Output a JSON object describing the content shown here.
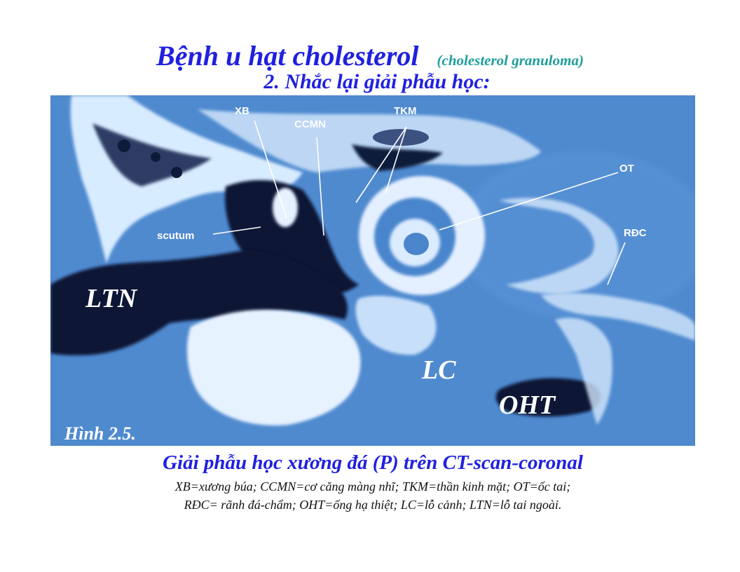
{
  "slide": {
    "title": "Bệnh u hạt cholesterol",
    "title_note": "(cholesterol granuloma)",
    "subtitle": "2. Nhắc lại giải phẫu học:",
    "colors": {
      "title": "#2020e0",
      "title_note": "#1e9e9e",
      "scan_bg": "#4a85cc"
    }
  },
  "figure": {
    "labels": {
      "xb": "XB",
      "ccmn": "CCMN",
      "tkm": "TKM",
      "ot": "OT",
      "rdc": "RĐC",
      "scutum": "scutum",
      "ltn": "LTN",
      "lc": "LC",
      "oht": "OHT"
    },
    "figure_number": "Hình 2.5.",
    "caption_title": "Giải phẫu học xương đá (P) trên CT-scan-coronal",
    "legend_line1": "XB=xương búa;  CCMN=cơ căng màng nhĩ;  TKM=thần kinh mặt;  OT=ốc tai;",
    "legend_line2": "RĐC= rãnh đá-chẩm;  OHT=ống hạ thiệt;  LC=lỗ cảnh;  LTN=lỗ tai ngoài."
  }
}
